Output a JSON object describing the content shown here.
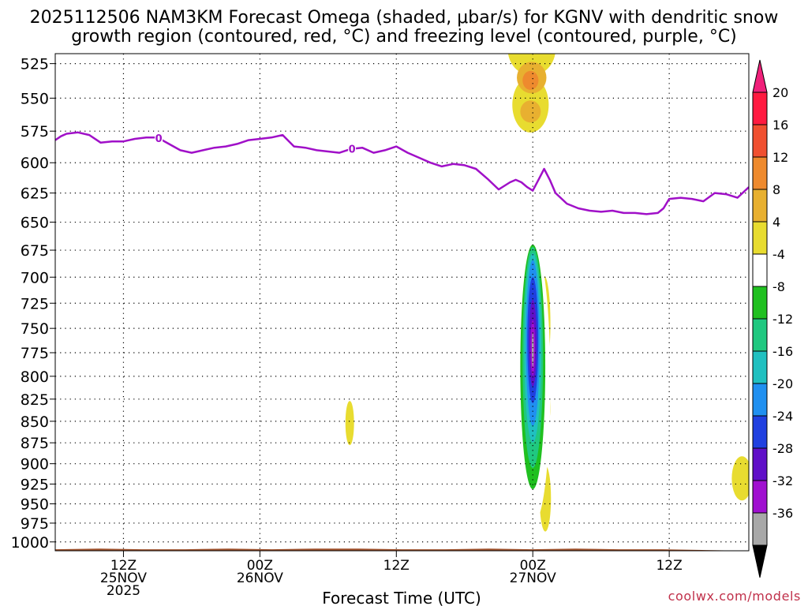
{
  "chart_data": {
    "type": "heatmap",
    "title_line1": "2025112506 NAM3KM Forecast Omega (shaded, μbar/s) for KGNV with dendritic snow",
    "title_line2": "growth region (contoured, red, °C) and freezing level (contoured, purple, °C)",
    "xlabel": "Forecast Time (UTC)",
    "credit": "coolwx.com/models",
    "x_unit": "hours since 2025-11-25 00Z",
    "xlim": [
      6,
      67
    ],
    "ylim_hpa": [
      1012,
      518
    ],
    "y_ticks": [
      525,
      550,
      575,
      600,
      625,
      650,
      675,
      700,
      725,
      750,
      775,
      800,
      825,
      850,
      875,
      900,
      925,
      950,
      975,
      1000
    ],
    "x_ticks": [
      {
        "hour": 12,
        "label": "12Z",
        "date": "25NOV",
        "year": "2025"
      },
      {
        "hour": 24,
        "label": "00Z",
        "date": "26NOV",
        "year": ""
      },
      {
        "hour": 36,
        "label": "12Z",
        "date": "",
        "year": ""
      },
      {
        "hour": 48,
        "label": "00Z",
        "date": "27NOV",
        "year": ""
      },
      {
        "hour": 60,
        "label": "12Z",
        "date": "",
        "year": ""
      }
    ],
    "colorbar": {
      "labels": [
        "20",
        "16",
        "12",
        "8",
        "4",
        "-4",
        "-8",
        "-12",
        "-16",
        "-20",
        "-24",
        "-28",
        "-32",
        "-36"
      ],
      "levels": [
        20,
        16,
        12,
        8,
        4,
        -4,
        -8,
        -12,
        -16,
        -20,
        -24,
        -28,
        -32,
        -36
      ],
      "colors": [
        "#ff1a40",
        "#f05030",
        "#ee8a2e",
        "#e8b030",
        "#e8dc30",
        "#ffffff",
        "#20c020",
        "#20c880",
        "#20c0c0",
        "#2090f0",
        "#2040e0",
        "#6010c8",
        "#a010d0",
        "#a8a8a8"
      ],
      "top_arrow_color": "#f0207a",
      "bottom_arrow_color": "#000000"
    },
    "freezing_level_0C": {
      "color": "#a010c8",
      "label": "0",
      "label_hours": [
        15.1,
        32.1
      ],
      "hours": [
        6,
        6.5,
        7,
        8,
        9,
        10,
        11,
        12,
        13,
        14,
        15,
        16,
        17,
        18,
        19,
        20,
        21,
        22,
        23,
        24,
        25,
        26,
        27,
        28,
        29,
        30,
        31,
        32,
        33,
        34,
        35,
        36,
        37,
        38,
        39,
        40,
        41,
        42,
        43,
        44,
        45,
        46,
        46.5,
        47,
        47.5,
        48,
        48.5,
        49,
        49.5,
        50,
        51,
        52,
        53,
        54,
        55,
        56,
        57,
        58,
        59,
        59.5,
        60,
        61,
        62,
        63,
        64,
        65,
        66,
        67
      ],
      "hpa": [
        582,
        579,
        577,
        576,
        578,
        584,
        583,
        583,
        581,
        580,
        580,
        585,
        590,
        592,
        590,
        588,
        587,
        585,
        582,
        581,
        580,
        578,
        587,
        588,
        590,
        591,
        592,
        589,
        588,
        592,
        590,
        587,
        592,
        596,
        600,
        603,
        601,
        602,
        605,
        613,
        622,
        616,
        614,
        616,
        620,
        623,
        614,
        605,
        614,
        625,
        634,
        638,
        640,
        641,
        640,
        642,
        642,
        643,
        642,
        638,
        630,
        629,
        630,
        632,
        625,
        626,
        629,
        620
      ]
    },
    "omega_regions": [
      {
        "level": 4,
        "hour": 47.9,
        "hpa": 515,
        "rx": 2.1,
        "ry": 33
      },
      {
        "level": 4,
        "hour": 47.8,
        "hpa": 555,
        "rx": 1.6,
        "ry": 35
      },
      {
        "level": 8,
        "hour": 47.9,
        "hpa": 535,
        "rx": 1.3,
        "ry": 20
      },
      {
        "level": 8,
        "hour": 47.8,
        "hpa": 560,
        "rx": 0.9,
        "ry": 14
      },
      {
        "level": 12,
        "hour": 47.8,
        "hpa": 537,
        "rx": 0.7,
        "ry": 12
      },
      {
        "level": 4,
        "hour": 48.5,
        "hpa": 735,
        "rx": 0.5,
        "ry": 75
      },
      {
        "level": 4,
        "hour": 49.0,
        "hpa": 745,
        "rx": 0.55,
        "ry": 60
      },
      {
        "level": 4,
        "hour": 49.1,
        "hpa": 833,
        "rx": 0.45,
        "ry": 30
      },
      {
        "level": 4,
        "hour": 49.1,
        "hpa": 943,
        "rx": 0.5,
        "ry": 42
      },
      {
        "level": 8,
        "hour": 49.0,
        "hpa": 755,
        "rx": 0.3,
        "ry": 35
      },
      {
        "level": 4,
        "hour": 31.9,
        "hpa": 852,
        "rx": 0.38,
        "ry": 28
      },
      {
        "level": 4,
        "hour": 66.4,
        "hpa": 918,
        "rx": 0.9,
        "ry": 28
      },
      {
        "level": -4,
        "hour": 23.9,
        "hpa": 910,
        "rx": 0.35,
        "ry": 48
      },
      {
        "level": -4,
        "hour": 48.1,
        "hpa": 808,
        "rx": 1.45,
        "ry": 176
      },
      {
        "level": -8,
        "hour": 48.0,
        "hpa": 790,
        "rx": 1.1,
        "ry": 155
      },
      {
        "level": -12,
        "hour": 48.0,
        "hpa": 780,
        "rx": 0.9,
        "ry": 140
      },
      {
        "level": -16,
        "hour": 48.0,
        "hpa": 770,
        "rx": 0.75,
        "ry": 120
      },
      {
        "level": -20,
        "hour": 48.0,
        "hpa": 765,
        "rx": 0.6,
        "ry": 105
      },
      {
        "level": -24,
        "hour": 48.0,
        "hpa": 762,
        "rx": 0.48,
        "ry": 80
      },
      {
        "level": -28,
        "hour": 48.0,
        "hpa": 765,
        "rx": 0.34,
        "ry": 55
      },
      {
        "level": -32,
        "hour": 48.0,
        "hpa": 770,
        "rx": 0.2,
        "ry": 35
      },
      {
        "level": -36,
        "hour": 48.0,
        "hpa": 772,
        "rx": 0.08,
        "ry": 22
      }
    ],
    "terrain": {
      "color": "#a0522d",
      "surface_hpa": [
        1010,
        1009,
        1010,
        1010,
        1009,
        1010,
        1009,
        1009,
        1010,
        1010,
        1009,
        1010,
        1009,
        1010,
        1010,
        1011,
        1012
      ]
    }
  }
}
